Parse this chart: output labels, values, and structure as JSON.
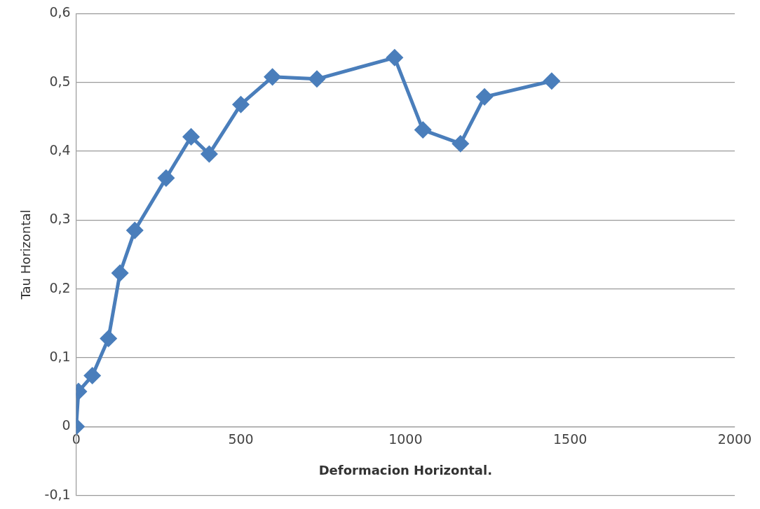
{
  "chart_data": {
    "type": "line",
    "xlabel": "Deformacion Horizontal.",
    "ylabel": "Tau Horizontal",
    "series": [
      {
        "color": "#4a7ebb",
        "x": [
          0,
          7,
          49,
          98,
          133,
          178,
          273,
          349,
          404,
          500,
          596,
          731,
          967,
          1053,
          1167,
          1240,
          1444
        ],
        "values": [
          0,
          0.051,
          0.074,
          0.128,
          0.223,
          0.285,
          0.361,
          0.421,
          0.396,
          0.468,
          0.508,
          0.505,
          0.536,
          0.431,
          0.411,
          0.479,
          0.502
        ]
      }
    ],
    "xlim": [
      0,
      2000
    ],
    "xticks": [
      0,
      500,
      1000,
      1500,
      2000
    ],
    "ylim": [
      -0.1,
      0.6
    ],
    "yticks": [
      {
        "value": -0.1,
        "label": "-0,1"
      },
      0,
      {
        "value": 0.1,
        "label": "0,1"
      },
      {
        "value": 0.2,
        "label": "0,2"
      },
      {
        "value": 0.3,
        "label": "0,3"
      },
      {
        "value": 0.4,
        "label": "0,4"
      },
      {
        "value": 0.5,
        "label": "0,5"
      },
      {
        "value": 0.6,
        "label": "0,6"
      }
    ],
    "grid": "y",
    "legend": false,
    "marker": "diamond",
    "line_style": "solid"
  }
}
